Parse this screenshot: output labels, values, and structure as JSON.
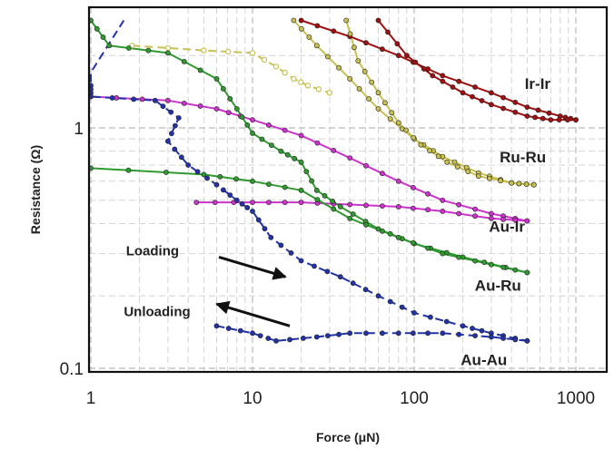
{
  "chart_data": {
    "type": "line",
    "title": "",
    "xlabel": "Force (μN)",
    "ylabel": "Resistance (Ω)",
    "x_scale": "log",
    "y_scale": "log",
    "xlim": [
      1,
      2000
    ],
    "ylim": [
      0.09,
      2.8
    ],
    "x_ticks": [
      {
        "value": 1,
        "label": "1"
      },
      {
        "value": 10,
        "label": "10"
      },
      {
        "value": 100,
        "label": "100"
      },
      {
        "value": 1000,
        "label": "1000"
      }
    ],
    "y_ticks": [
      {
        "value": 0.1,
        "label": "0.1"
      },
      {
        "value": 1,
        "label": "1"
      }
    ],
    "grid": true,
    "legend": "none",
    "colors": {
      "ir_ir": "#a01010",
      "ru_ru": "#c8c050",
      "au_ir": "#cc33cc",
      "au_ru": "#2f9a2f",
      "au_au": "#2233aa"
    },
    "series": [
      {
        "name": "Ir-Ir",
        "key": "ir_ir",
        "style": "solid",
        "marker": "filled",
        "loading": [
          [
            20,
            2.8
          ],
          [
            40,
            2.4
          ],
          [
            80,
            2.0
          ],
          [
            150,
            1.65
          ],
          [
            300,
            1.4
          ],
          [
            500,
            1.22
          ],
          [
            800,
            1.12
          ],
          [
            1000,
            1.08
          ]
        ],
        "unloading": [
          [
            1000,
            1.08
          ],
          [
            700,
            1.08
          ],
          [
            500,
            1.12
          ],
          [
            300,
            1.25
          ],
          [
            200,
            1.4
          ],
          [
            130,
            1.65
          ],
          [
            90,
            2.0
          ],
          [
            60,
            2.8
          ]
        ]
      },
      {
        "name": "Ru-Ru",
        "key": "ru_ru",
        "style": "solid",
        "marker": "filled",
        "loading": [
          [
            18,
            2.8
          ],
          [
            25,
            2.2
          ],
          [
            40,
            1.6
          ],
          [
            60,
            1.2
          ],
          [
            100,
            0.9
          ],
          [
            150,
            0.76
          ],
          [
            250,
            0.65
          ],
          [
            400,
            0.59
          ],
          [
            550,
            0.58
          ]
        ],
        "unloading": [
          [
            550,
            0.58
          ],
          [
            400,
            0.59
          ],
          [
            250,
            0.63
          ],
          [
            160,
            0.72
          ],
          [
            110,
            0.85
          ],
          [
            80,
            1.05
          ],
          [
            60,
            1.4
          ],
          [
            45,
            1.9
          ],
          [
            38,
            2.8
          ]
        ]
      },
      {
        "name": "Ru-Ru",
        "key": "ru_ru",
        "style": "dashed",
        "marker": "open",
        "loading": [
          [
            1.8,
            2.2
          ],
          [
            5,
            2.1
          ],
          [
            10,
            2.05
          ],
          [
            14,
            1.8
          ],
          [
            18,
            1.6
          ],
          [
            22,
            1.5
          ],
          [
            30,
            1.4
          ]
        ]
      },
      {
        "name": "Au-Ir",
        "key": "au_ir",
        "style": "solid",
        "marker": "filled",
        "loading": [
          [
            1,
            1.35
          ],
          [
            3,
            1.3
          ],
          [
            6,
            1.2
          ],
          [
            10,
            1.08
          ],
          [
            20,
            0.93
          ],
          [
            40,
            0.75
          ],
          [
            80,
            0.6
          ],
          [
            150,
            0.5
          ],
          [
            300,
            0.44
          ],
          [
            500,
            0.41
          ]
        ],
        "unloading": [
          [
            500,
            0.41
          ],
          [
            300,
            0.42
          ],
          [
            150,
            0.45
          ],
          [
            80,
            0.47
          ],
          [
            40,
            0.48
          ],
          [
            20,
            0.49
          ],
          [
            10,
            0.49
          ],
          [
            4.5,
            0.49
          ]
        ]
      },
      {
        "name": "Au-Ru",
        "key": "au_ru",
        "style": "solid",
        "marker": "filled",
        "loading": [
          [
            1,
            2.8
          ],
          [
            1.3,
            2.2
          ],
          [
            3,
            2.05
          ],
          [
            6,
            1.6
          ],
          [
            8,
            1.2
          ],
          [
            10,
            0.95
          ],
          [
            15,
            0.8
          ],
          [
            20,
            0.72
          ],
          [
            25,
            0.55
          ],
          [
            35,
            0.47
          ],
          [
            60,
            0.38
          ],
          [
            100,
            0.33
          ],
          [
            200,
            0.29
          ],
          [
            500,
            0.25
          ]
        ],
        "unloading": [
          [
            500,
            0.25
          ],
          [
            300,
            0.27
          ],
          [
            150,
            0.3
          ],
          [
            80,
            0.35
          ],
          [
            40,
            0.42
          ],
          [
            20,
            0.55
          ],
          [
            10,
            0.6
          ],
          [
            5,
            0.64
          ],
          [
            1,
            0.68
          ]
        ]
      },
      {
        "name": "Au-Au",
        "key": "au_au",
        "style": "dashed",
        "marker": "filled",
        "loading": [
          [
            1,
            1.5
          ],
          [
            1,
            1.35
          ],
          [
            2.5,
            1.3
          ],
          [
            3.5,
            1.1
          ],
          [
            3,
            0.88
          ],
          [
            4,
            0.7
          ],
          [
            6,
            0.58
          ],
          [
            8,
            0.5
          ],
          [
            10,
            0.45
          ],
          [
            13,
            0.35
          ],
          [
            20,
            0.28
          ],
          [
            35,
            0.24
          ],
          [
            60,
            0.2
          ],
          [
            100,
            0.17
          ],
          [
            200,
            0.15
          ],
          [
            300,
            0.14
          ],
          [
            500,
            0.13
          ]
        ],
        "unloading": [
          [
            500,
            0.13
          ],
          [
            300,
            0.135
          ],
          [
            150,
            0.14
          ],
          [
            80,
            0.14
          ],
          [
            40,
            0.14
          ],
          [
            25,
            0.135
          ],
          [
            14,
            0.13
          ],
          [
            10,
            0.14
          ],
          [
            6,
            0.15
          ]
        ]
      },
      {
        "name": "Au-Au",
        "key": "au_au",
        "style": "dashed",
        "marker": "none",
        "loading": [
          [
            1,
            1.55
          ],
          [
            1,
            1.7
          ],
          [
            1.6,
            2.8
          ]
        ]
      }
    ],
    "labels": [
      {
        "name": "ir-ir",
        "text": "Ir-Ir",
        "x": 580,
        "y": 1.45
      },
      {
        "name": "ru-ru",
        "text": "Ru-Ru",
        "x": 470,
        "y": 0.72
      },
      {
        "name": "au-ir",
        "text": "Au-Ir",
        "x": 375,
        "y": 0.37
      },
      {
        "name": "au-ru",
        "text": "Au-Ru",
        "x": 330,
        "y": 0.21
      },
      {
        "name": "au-au",
        "text": "Au-Au",
        "x": 270,
        "y": 0.103
      }
    ],
    "annotations": [
      {
        "name": "loading",
        "text": "Loading",
        "tx": 1.65,
        "ty": 0.295,
        "arrow": {
          "from": [
            6.2,
            0.29
          ],
          "to": [
            16,
            0.24
          ]
        }
      },
      {
        "name": "unloading",
        "text": "Unloading",
        "tx": 1.6,
        "ty": 0.165,
        "arrow": {
          "from": [
            17,
            0.15
          ],
          "to": [
            6,
            0.185
          ]
        }
      }
    ]
  }
}
